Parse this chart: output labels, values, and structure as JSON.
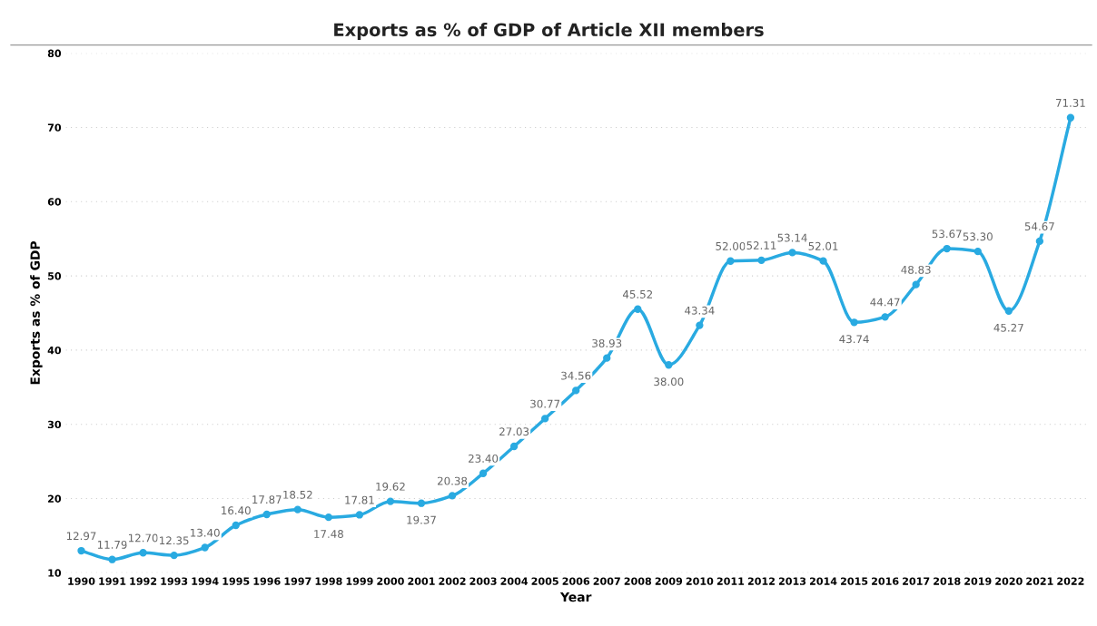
{
  "chart_data": {
    "type": "line",
    "title": "Exports as % of GDP of Article XII members",
    "xlabel": "Year",
    "ylabel": "Exports as % of GDP",
    "categories": [
      "1990",
      "1991",
      "1992",
      "1993",
      "1994",
      "1995",
      "1996",
      "1997",
      "1998",
      "1999",
      "2000",
      "2001",
      "2002",
      "2003",
      "2004",
      "2005",
      "2006",
      "2007",
      "2008",
      "2009",
      "2010",
      "2011",
      "2012",
      "2013",
      "2014",
      "2015",
      "2016",
      "2017",
      "2018",
      "2019",
      "2020",
      "2021",
      "2022"
    ],
    "series": [
      {
        "color": "#29aae1",
        "values": [
          12.97,
          11.79,
          12.7,
          12.35,
          13.4,
          16.4,
          17.87,
          18.52,
          17.48,
          17.81,
          19.62,
          19.37,
          20.38,
          23.4,
          27.03,
          30.77,
          34.56,
          38.93,
          45.52,
          38.0,
          43.34,
          52.0,
          52.11,
          53.14,
          52.01,
          43.74,
          44.47,
          48.83,
          53.67,
          53.3,
          45.27,
          54.67,
          71.31
        ],
        "value_labels": [
          "12.97",
          "11.79",
          "12.70",
          "12.35",
          "13.40",
          "16.40",
          "17.87",
          "18.52",
          "17.48",
          "17.81",
          "19.62",
          "19.37",
          "20.38",
          "23.40",
          "27.03",
          "30.77",
          "34.56",
          "38.93",
          "45.52",
          "38.00",
          "43.34",
          "52.00",
          "52.11",
          "53.14",
          "52.01",
          "43.74",
          "44.47",
          "48.83",
          "53.67",
          "53.30",
          "45.27",
          "54.67",
          "71.31"
        ]
      }
    ],
    "ylim": [
      10,
      80
    ],
    "yticks": [
      10,
      20,
      30,
      40,
      50,
      60,
      70,
      80
    ],
    "grid": "y",
    "marker": "circle",
    "line_style": "solid"
  }
}
